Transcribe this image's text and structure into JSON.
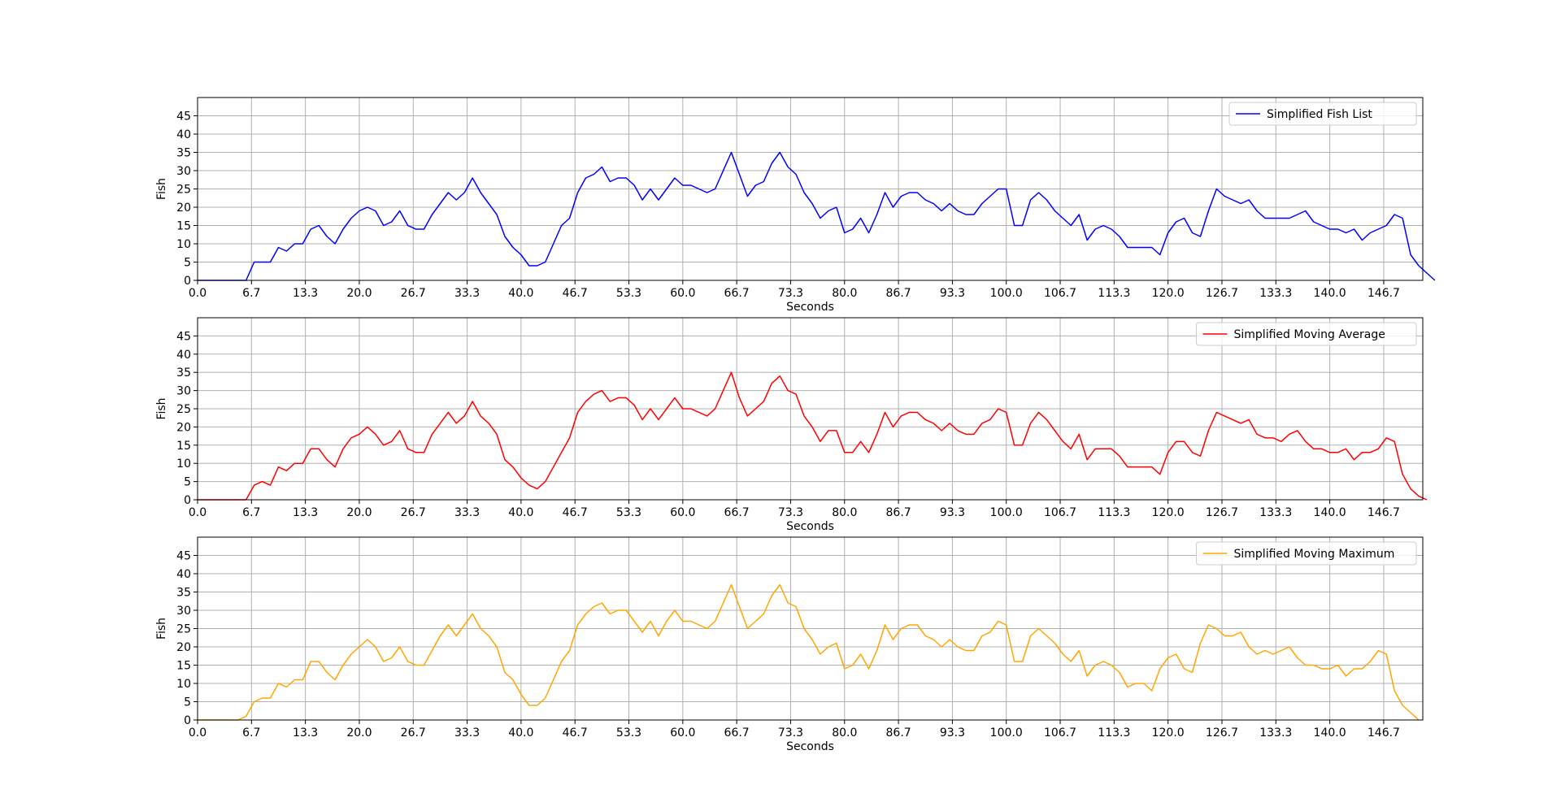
{
  "chart_data": [
    {
      "type": "line",
      "xlabel": "Seconds",
      "ylabel": "Fish",
      "xlim": [
        0,
        151.5
      ],
      "ylim": [
        0,
        50
      ],
      "x_ticks": [
        "0.0",
        "6.7",
        "13.3",
        "20.0",
        "26.7",
        "33.3",
        "40.0",
        "46.7",
        "53.3",
        "60.0",
        "66.7",
        "73.3",
        "80.0",
        "86.7",
        "93.3",
        "100.0",
        "106.7",
        "113.3",
        "120.0",
        "126.7",
        "133.3",
        "140.0",
        "146.7"
      ],
      "y_ticks": [
        "0",
        "5",
        "10",
        "15",
        "20",
        "25",
        "30",
        "35",
        "40",
        "45"
      ],
      "grid": true,
      "legend_position": "top-right",
      "series": [
        {
          "name": "Simplified Fish List",
          "color": "#0000ff",
          "values": [
            0,
            0,
            0,
            0,
            0,
            0,
            0,
            5,
            5,
            5,
            9,
            8,
            10,
            10,
            14,
            15,
            12,
            10,
            14,
            17,
            19,
            20,
            19,
            15,
            16,
            19,
            15,
            14,
            14,
            18,
            21,
            24,
            22,
            24,
            28,
            24,
            21,
            18,
            12,
            9,
            7,
            4,
            4,
            5,
            10,
            15,
            17,
            24,
            28,
            29,
            31,
            27,
            28,
            28,
            26,
            22,
            25,
            22,
            25,
            28,
            26,
            26,
            25,
            24,
            25,
            30,
            35,
            29,
            23,
            26,
            27,
            32,
            35,
            31,
            29,
            24,
            21,
            17,
            19,
            20,
            13,
            14,
            17,
            13,
            18,
            24,
            20,
            23,
            24,
            24,
            22,
            21,
            19,
            21,
            19,
            18,
            18,
            21,
            23,
            25,
            25,
            15,
            15,
            22,
            24,
            22,
            19,
            17,
            15,
            18,
            11,
            14,
            15,
            14,
            12,
            9,
            9,
            9,
            9,
            7,
            13,
            16,
            17,
            13,
            12,
            19,
            25,
            23,
            22,
            21,
            22,
            19,
            17,
            17,
            17,
            17,
            18,
            19,
            16,
            15,
            14,
            14,
            13,
            14,
            11,
            13,
            14,
            15,
            18,
            17,
            7,
            4,
            2,
            0
          ]
        }
      ]
    },
    {
      "type": "line",
      "xlabel": "Seconds",
      "ylabel": "Fish",
      "xlim": [
        0,
        151.5
      ],
      "ylim": [
        0,
        50
      ],
      "x_ticks": [
        "0.0",
        "6.7",
        "13.3",
        "20.0",
        "26.7",
        "33.3",
        "40.0",
        "46.7",
        "53.3",
        "60.0",
        "66.7",
        "73.3",
        "80.0",
        "86.7",
        "93.3",
        "100.0",
        "106.7",
        "113.3",
        "120.0",
        "126.7",
        "133.3",
        "140.0",
        "146.7"
      ],
      "y_ticks": [
        "0",
        "5",
        "10",
        "15",
        "20",
        "25",
        "30",
        "35",
        "40",
        "45"
      ],
      "grid": true,
      "legend_position": "top-right",
      "series": [
        {
          "name": "Simplified Moving Average",
          "color": "#ff0000",
          "values": [
            0,
            0,
            0,
            0,
            0,
            0,
            0,
            4,
            5,
            4,
            9,
            8,
            10,
            10,
            14,
            14,
            11,
            9,
            14,
            17,
            18,
            20,
            18,
            15,
            16,
            19,
            14,
            13,
            13,
            18,
            21,
            24,
            21,
            23,
            27,
            23,
            21,
            18,
            11,
            9,
            6,
            4,
            3,
            5,
            9,
            13,
            17,
            24,
            27,
            29,
            30,
            27,
            28,
            28,
            26,
            22,
            25,
            22,
            25,
            28,
            25,
            25,
            24,
            23,
            25,
            30,
            35,
            28,
            23,
            25,
            27,
            32,
            34,
            30,
            29,
            23,
            20,
            16,
            19,
            19,
            13,
            13,
            16,
            13,
            18,
            24,
            20,
            23,
            24,
            24,
            22,
            21,
            19,
            21,
            19,
            18,
            18,
            21,
            22,
            25,
            24,
            15,
            15,
            21,
            24,
            22,
            19,
            16,
            14,
            18,
            11,
            14,
            14,
            14,
            12,
            9,
            9,
            9,
            9,
            7,
            13,
            16,
            16,
            13,
            12,
            19,
            24,
            23,
            22,
            21,
            22,
            18,
            17,
            17,
            16,
            18,
            19,
            16,
            14,
            14,
            13,
            13,
            14,
            11,
            13,
            13,
            14,
            17,
            16,
            7,
            3,
            1,
            0
          ]
        }
      ]
    },
    {
      "type": "line",
      "xlabel": "Seconds",
      "ylabel": "Fish",
      "xlim": [
        0,
        151.5
      ],
      "ylim": [
        0,
        50
      ],
      "x_ticks": [
        "0.0",
        "6.7",
        "13.3",
        "20.0",
        "26.7",
        "33.3",
        "40.0",
        "46.7",
        "53.3",
        "60.0",
        "66.7",
        "73.3",
        "80.0",
        "86.7",
        "93.3",
        "100.0",
        "106.7",
        "113.3",
        "120.0",
        "126.7",
        "133.3",
        "140.0",
        "146.7"
      ],
      "y_ticks": [
        "0",
        "5",
        "10",
        "15",
        "20",
        "25",
        "30",
        "35",
        "40",
        "45"
      ],
      "grid": true,
      "legend_position": "top-right",
      "series": [
        {
          "name": "Simplified Moving Maximum",
          "color": "#ffa500",
          "values": [
            0,
            0,
            0,
            0,
            0,
            0,
            1,
            5,
            6,
            6,
            10,
            9,
            11,
            11,
            16,
            16,
            13,
            11,
            15,
            18,
            20,
            22,
            20,
            16,
            17,
            20,
            16,
            15,
            15,
            19,
            23,
            26,
            23,
            26,
            29,
            25,
            23,
            20,
            13,
            11,
            7,
            4,
            4,
            6,
            11,
            16,
            19,
            26,
            29,
            31,
            32,
            29,
            30,
            30,
            27,
            24,
            27,
            23,
            27,
            30,
            27,
            27,
            26,
            25,
            27,
            32,
            37,
            31,
            25,
            27,
            29,
            34,
            37,
            32,
            31,
            25,
            22,
            18,
            20,
            21,
            14,
            15,
            18,
            14,
            19,
            26,
            22,
            25,
            26,
            26,
            23,
            22,
            20,
            22,
            20,
            19,
            19,
            23,
            24,
            27,
            26,
            16,
            16,
            23,
            25,
            23,
            21,
            18,
            16,
            19,
            12,
            15,
            16,
            15,
            13,
            9,
            10,
            10,
            8,
            14,
            17,
            18,
            14,
            13,
            21,
            26,
            25,
            23,
            23,
            24,
            20,
            18,
            19,
            18,
            19,
            20,
            17,
            15,
            15,
            14,
            14,
            15,
            12,
            14,
            14,
            16,
            19,
            18,
            8,
            4,
            2,
            0
          ]
        }
      ]
    }
  ]
}
